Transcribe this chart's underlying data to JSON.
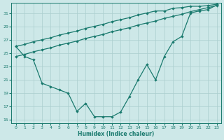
{
  "xlabel": "Humidex (Indice chaleur)",
  "x": [
    0,
    1,
    2,
    3,
    4,
    5,
    6,
    7,
    8,
    9,
    10,
    11,
    12,
    13,
    14,
    15,
    16,
    17,
    18,
    19,
    20,
    21,
    22,
    23
  ],
  "line_zigzag": [
    26.0,
    24.5,
    24.0,
    20.5,
    20.0,
    19.5,
    19.0,
    16.3,
    17.5,
    15.5,
    15.5,
    15.5,
    16.2,
    18.5,
    21.0,
    23.3,
    21.0,
    24.5,
    26.7,
    27.5,
    31.0,
    31.3,
    31.5,
    32.2
  ],
  "line_straight1": [
    26.0,
    26.3,
    26.7,
    27.0,
    27.3,
    27.7,
    28.0,
    28.3,
    28.7,
    29.0,
    29.3,
    29.7,
    30.0,
    30.3,
    30.7,
    31.0,
    31.3,
    31.3,
    31.7,
    31.8,
    32.0,
    32.0,
    32.1,
    32.3
  ],
  "line_straight2": [
    24.5,
    24.8,
    25.2,
    25.5,
    25.8,
    26.2,
    26.5,
    26.8,
    27.2,
    27.5,
    27.8,
    28.2,
    28.5,
    28.8,
    29.2,
    29.5,
    29.8,
    30.2,
    30.5,
    30.8,
    31.2,
    31.5,
    31.8,
    32.1
  ],
  "line_color": "#1a7a6e",
  "bg_color": "#cde8e8",
  "grid_color": "#aacece",
  "xlim": [
    -0.5,
    23.5
  ],
  "ylim": [
    14.5,
    32.5
  ],
  "yticks": [
    15,
    17,
    19,
    21,
    23,
    25,
    27,
    29,
    31
  ],
  "xticks": [
    0,
    1,
    2,
    3,
    4,
    5,
    6,
    7,
    8,
    9,
    10,
    11,
    12,
    13,
    14,
    15,
    16,
    17,
    18,
    19,
    20,
    21,
    22,
    23
  ]
}
